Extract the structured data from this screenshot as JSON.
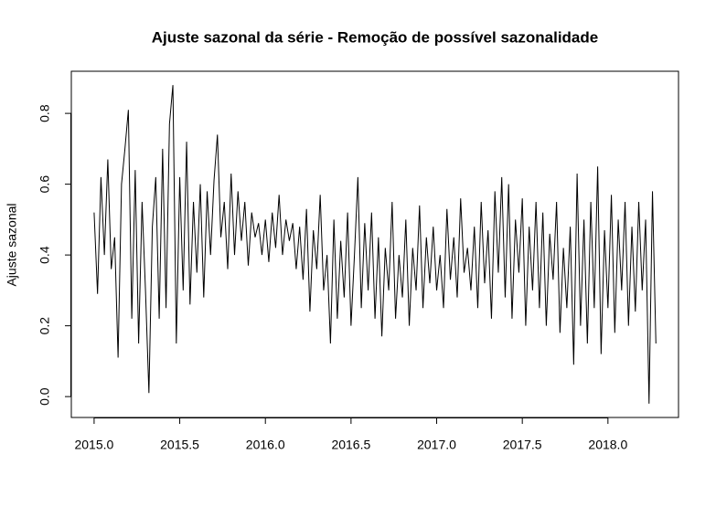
{
  "chart_data": {
    "type": "line",
    "title": "Ajuste sazonal da série - Remoção de possível sazonalidade",
    "ylabel": "Ajuste sazonal",
    "color": "#000000",
    "x": [
      2015,
      2015.02,
      2015.04,
      2015.06,
      2015.08,
      2015.1,
      2015.12,
      2015.14,
      2015.16,
      2015.18,
      2015.2,
      2015.22,
      2015.24,
      2015.26,
      2015.28,
      2015.3,
      2015.32,
      2015.34,
      2015.36,
      2015.38,
      2015.4,
      2015.42,
      2015.44,
      2015.46,
      2015.48,
      2015.5,
      2015.52,
      2015.54,
      2015.56,
      2015.58,
      2015.6,
      2015.62,
      2015.64,
      2015.66,
      2015.68,
      2015.7,
      2015.72,
      2015.74,
      2015.76,
      2015.78,
      2015.8,
      2015.82,
      2015.84,
      2015.86,
      2015.88,
      2015.9,
      2015.92,
      2015.94,
      2015.96,
      2015.98,
      2016,
      2016.02,
      2016.04,
      2016.06,
      2016.08,
      2016.1,
      2016.12,
      2016.14,
      2016.16,
      2016.18,
      2016.2,
      2016.22,
      2016.24,
      2016.26,
      2016.28,
      2016.3,
      2016.32,
      2016.34,
      2016.36,
      2016.38,
      2016.4,
      2016.42,
      2016.44,
      2016.46,
      2016.48,
      2016.5,
      2016.52,
      2016.54,
      2016.56,
      2016.58,
      2016.6,
      2016.62,
      2016.64,
      2016.66,
      2016.68,
      2016.7,
      2016.72,
      2016.74,
      2016.76,
      2016.78,
      2016.8,
      2016.82,
      2016.84,
      2016.86,
      2016.88,
      2016.9,
      2016.92,
      2016.94,
      2016.96,
      2016.98,
      2017,
      2017.02,
      2017.04,
      2017.06,
      2017.08,
      2017.1,
      2017.12,
      2017.14,
      2017.16,
      2017.18,
      2017.2,
      2017.22,
      2017.24,
      2017.26,
      2017.28,
      2017.3,
      2017.32,
      2017.34,
      2017.36,
      2017.38,
      2017.4,
      2017.42,
      2017.44,
      2017.46,
      2017.48,
      2017.5,
      2017.52,
      2017.54,
      2017.56,
      2017.58,
      2017.6,
      2017.62,
      2017.64,
      2017.66,
      2017.68,
      2017.7,
      2017.72,
      2017.74,
      2017.76,
      2017.78,
      2017.8,
      2017.82,
      2017.84,
      2017.86,
      2017.88,
      2017.9,
      2017.92,
      2017.94,
      2017.96,
      2017.98,
      2018,
      2018.02,
      2018.04,
      2018.06,
      2018.08,
      2018.1,
      2018.12,
      2018.14,
      2018.16,
      2018.18,
      2018.2,
      2018.22,
      2018.24,
      2018.26,
      2018.28
    ],
    "values": [
      0.52,
      0.29,
      0.62,
      0.4,
      0.67,
      0.36,
      0.45,
      0.11,
      0.6,
      0.7,
      0.81,
      0.22,
      0.64,
      0.15,
      0.55,
      0.3,
      0.01,
      0.48,
      0.62,
      0.22,
      0.7,
      0.25,
      0.77,
      0.88,
      0.15,
      0.62,
      0.3,
      0.72,
      0.26,
      0.55,
      0.35,
      0.6,
      0.28,
      0.58,
      0.4,
      0.61,
      0.74,
      0.45,
      0.55,
      0.36,
      0.63,
      0.4,
      0.58,
      0.44,
      0.55,
      0.37,
      0.52,
      0.45,
      0.49,
      0.4,
      0.5,
      0.38,
      0.52,
      0.42,
      0.57,
      0.4,
      0.5,
      0.44,
      0.49,
      0.36,
      0.48,
      0.33,
      0.53,
      0.24,
      0.47,
      0.36,
      0.57,
      0.3,
      0.4,
      0.15,
      0.5,
      0.22,
      0.44,
      0.28,
      0.52,
      0.2,
      0.4,
      0.62,
      0.25,
      0.49,
      0.3,
      0.52,
      0.22,
      0.45,
      0.17,
      0.42,
      0.3,
      0.55,
      0.22,
      0.4,
      0.28,
      0.5,
      0.2,
      0.42,
      0.3,
      0.54,
      0.25,
      0.45,
      0.32,
      0.48,
      0.3,
      0.4,
      0.25,
      0.53,
      0.33,
      0.45,
      0.28,
      0.56,
      0.35,
      0.42,
      0.3,
      0.48,
      0.25,
      0.55,
      0.32,
      0.47,
      0.22,
      0.58,
      0.35,
      0.62,
      0.28,
      0.6,
      0.22,
      0.5,
      0.35,
      0.56,
      0.2,
      0.48,
      0.3,
      0.55,
      0.25,
      0.52,
      0.2,
      0.46,
      0.33,
      0.55,
      0.18,
      0.42,
      0.25,
      0.48,
      0.09,
      0.63,
      0.2,
      0.5,
      0.15,
      0.55,
      0.25,
      0.65,
      0.12,
      0.47,
      0.25,
      0.57,
      0.18,
      0.5,
      0.3,
      0.55,
      0.2,
      0.48,
      0.24,
      0.55,
      0.3,
      0.5,
      -0.02,
      0.58,
      0.15
    ],
    "xlim": [
      2014.867,
      2018.412
    ],
    "ylim": [
      -0.059,
      0.919
    ],
    "xticks": [
      {
        "value": 2015,
        "label": "2015.0"
      },
      2015.5,
      {
        "value": 2016,
        "label": "2016.0"
      },
      2016.5,
      {
        "value": 2017,
        "label": "2017.0"
      },
      2017.5,
      {
        "value": 2018,
        "label": "2018.0"
      }
    ],
    "yticks": [
      {
        "value": 0,
        "label": "0.0"
      },
      0.2,
      0.4,
      0.6,
      0.8
    ]
  }
}
